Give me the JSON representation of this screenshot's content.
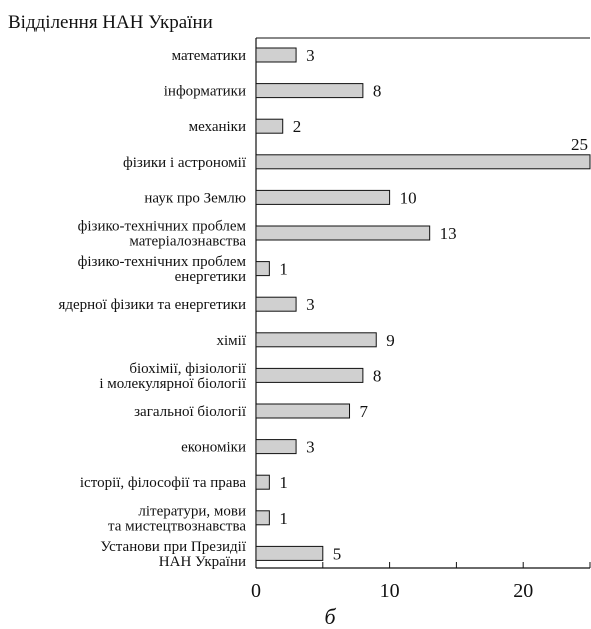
{
  "chart_data": {
    "type": "bar",
    "orientation": "horizontal",
    "title": "Відділення НАН України",
    "caption": "б",
    "categories": [
      [
        "математики"
      ],
      [
        "інформатики"
      ],
      [
        "механіки"
      ],
      [
        "фізики і астрономії"
      ],
      [
        "наук про Землю"
      ],
      [
        "фізико-технічних проблем",
        "матеріалознавства"
      ],
      [
        "фізико-технічних проблем",
        "енергетики"
      ],
      [
        "ядерної фізики та енергетики"
      ],
      [
        "хімії"
      ],
      [
        "біохімії, фізіології",
        "і молекулярної біології"
      ],
      [
        "загальної біології"
      ],
      [
        "економіки"
      ],
      [
        "історії, філософії та права"
      ],
      [
        "літератури, мови",
        "та мистецтвознавства"
      ],
      [
        "Установи при Президії",
        "НАН України"
      ]
    ],
    "values": [
      3,
      8,
      2,
      25,
      10,
      13,
      1,
      3,
      9,
      8,
      7,
      3,
      1,
      1,
      5
    ],
    "xlim": [
      0,
      25
    ],
    "x_ticks": [
      0,
      10,
      20
    ],
    "bar_color": "#d0d0d0",
    "bar_edge_color": "#111111",
    "grid": false
  }
}
